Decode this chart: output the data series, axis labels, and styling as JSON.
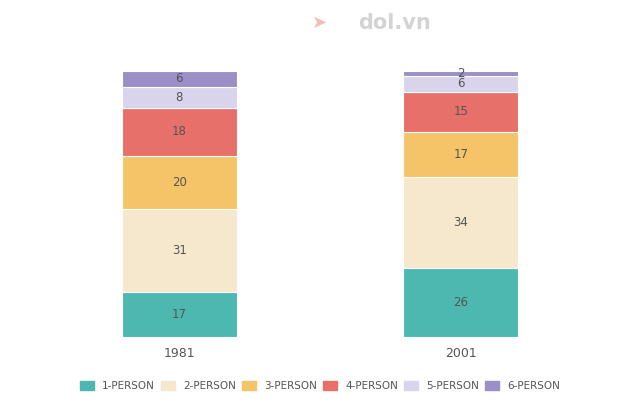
{
  "categories": [
    "1981",
    "2001"
  ],
  "series": [
    {
      "label": "1-PERSON",
      "values": [
        17,
        26
      ],
      "color": "#4db8b0"
    },
    {
      "label": "2-PERSON",
      "values": [
        31,
        34
      ],
      "color": "#f5e8cc"
    },
    {
      "label": "3-PERSON",
      "values": [
        20,
        17
      ],
      "color": "#f5c468"
    },
    {
      "label": "4-PERSON",
      "values": [
        18,
        15
      ],
      "color": "#e8706a"
    },
    {
      "label": "5-PERSON",
      "values": [
        8,
        6
      ],
      "color": "#d8d4ec"
    },
    {
      "label": "6-PERSON",
      "values": [
        6,
        2
      ],
      "color": "#9b8fc8"
    }
  ],
  "bar_width": 0.18,
  "bar_positions": [
    0.28,
    0.72
  ],
  "figsize": [
    6.4,
    4.11
  ],
  "dpi": 100,
  "background_color": "#ffffff",
  "text_color": "#555555",
  "label_fontsize": 8.5,
  "tick_fontsize": 9,
  "legend_fontsize": 7.5,
  "ylim": [
    0,
    108
  ]
}
